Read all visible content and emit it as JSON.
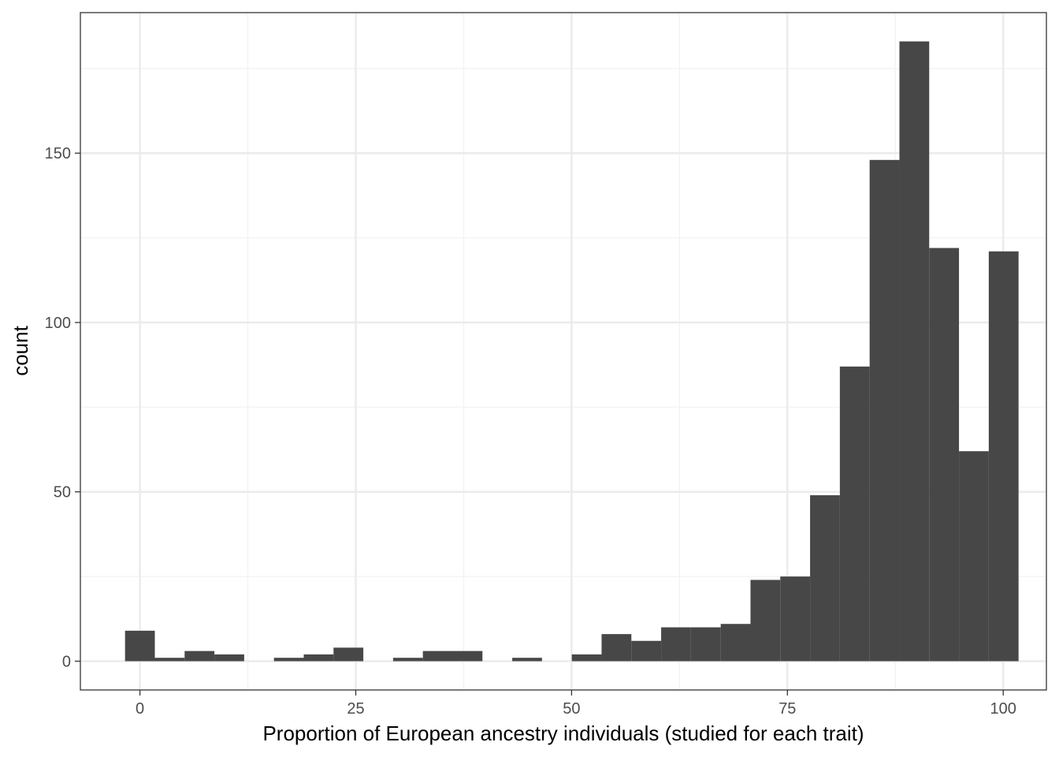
{
  "chart_data": {
    "type": "histogram",
    "title": "",
    "xlabel": "Proportion of European ancestry individuals (studied for each trait)",
    "ylabel": "count",
    "xlim": [
      -6.9,
      105
    ],
    "ylim": [
      -8.5,
      191.5
    ],
    "x_ticks": [
      0,
      25,
      50,
      75,
      100
    ],
    "x_minor_ticks": [
      12.5,
      37.5,
      62.5,
      87.5
    ],
    "y_ticks": [
      0,
      50,
      100,
      150
    ],
    "y_minor_ticks": [
      25,
      75,
      125,
      175
    ],
    "x_tick_labels": [
      "0",
      "25",
      "50",
      "75",
      "100"
    ],
    "y_tick_labels": [
      "0",
      "50",
      "100",
      "150"
    ],
    "bin_width": 3.45,
    "bins": [
      {
        "center": 0.0,
        "count": 9
      },
      {
        "center": 3.45,
        "count": 1
      },
      {
        "center": 6.9,
        "count": 3
      },
      {
        "center": 10.35,
        "count": 2
      },
      {
        "center": 13.8,
        "count": 0
      },
      {
        "center": 17.25,
        "count": 1
      },
      {
        "center": 20.7,
        "count": 2
      },
      {
        "center": 24.15,
        "count": 4
      },
      {
        "center": 27.6,
        "count": 0
      },
      {
        "center": 31.05,
        "count": 1
      },
      {
        "center": 34.5,
        "count": 3
      },
      {
        "center": 37.95,
        "count": 3
      },
      {
        "center": 41.4,
        "count": 0
      },
      {
        "center": 44.85,
        "count": 1
      },
      {
        "center": 48.3,
        "count": 0
      },
      {
        "center": 51.75,
        "count": 2
      },
      {
        "center": 55.2,
        "count": 8
      },
      {
        "center": 58.65,
        "count": 6
      },
      {
        "center": 62.1,
        "count": 10
      },
      {
        "center": 65.55,
        "count": 10
      },
      {
        "center": 69.0,
        "count": 11
      },
      {
        "center": 72.45,
        "count": 24
      },
      {
        "center": 75.9,
        "count": 25
      },
      {
        "center": 79.35,
        "count": 49
      },
      {
        "center": 82.8,
        "count": 87
      },
      {
        "center": 86.25,
        "count": 148
      },
      {
        "center": 89.7,
        "count": 183
      },
      {
        "center": 93.15,
        "count": 122
      },
      {
        "center": 96.6,
        "count": 62
      },
      {
        "center": 100.05,
        "count": 121
      }
    ],
    "bar_color": "#474747",
    "grid": true,
    "grid_major_color": "#ebebeb",
    "grid_minor_color": "#f2f2f2",
    "panel_border_color": "#333333",
    "legend": "none"
  }
}
